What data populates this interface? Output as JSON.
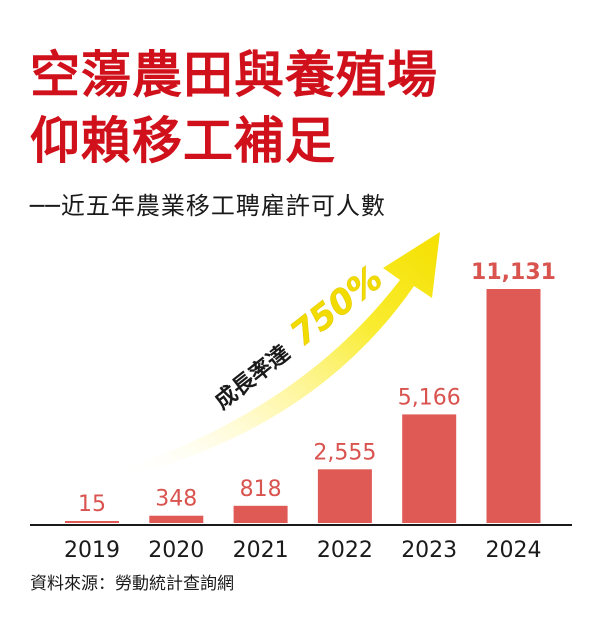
{
  "header": {
    "title_line1": "空蕩農田與養殖場",
    "title_line2": "仰賴移工補足",
    "subtitle": "──近五年農業移工聘雇許可人數"
  },
  "chart_data": {
    "type": "bar",
    "categories": [
      "2019",
      "2020",
      "2021",
      "2022",
      "2023",
      "2024"
    ],
    "values": [
      15,
      348,
      818,
      2555,
      5166,
      11131
    ],
    "value_labels": [
      "15",
      "348",
      "818",
      "2,555",
      "5,166",
      "11,131"
    ],
    "ylim": [
      0,
      11131
    ],
    "grid": false,
    "annotation": {
      "text": "成長率達",
      "value": "750%"
    }
  },
  "colors": {
    "bar": "#e05a55",
    "title": "#d0111b",
    "arrow": "#f7e600"
  },
  "footer": {
    "source": "資料來源：勞動統計查詢網"
  }
}
